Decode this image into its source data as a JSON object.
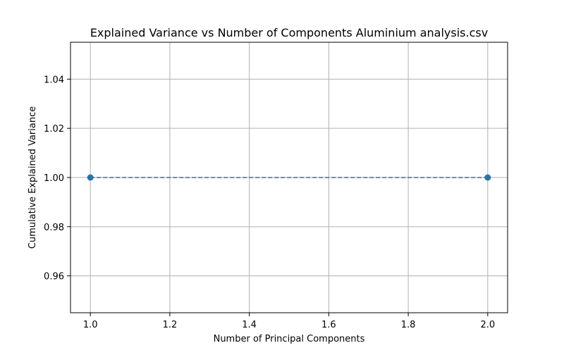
{
  "chart_data": {
    "type": "line",
    "title": "Explained Variance vs Number of Components Aluminium analysis.csv",
    "xlabel": "Number of Principal Components",
    "ylabel": "Cumulative Explained Variance",
    "x": [
      1,
      2
    ],
    "series": [
      {
        "values": [
          1.0,
          1.0
        ],
        "color": "#1f77b4",
        "linestyle": "dashed",
        "marker": "circle"
      }
    ],
    "xlim": [
      0.95,
      2.05
    ],
    "ylim": [
      0.945,
      1.055
    ],
    "xticks": [
      1.0,
      1.2,
      1.4,
      1.6,
      1.8,
      2.0
    ],
    "xtick_labels": [
      "1.0",
      "1.2",
      "1.4",
      "1.6",
      "1.8",
      "2.0"
    ],
    "yticks": [
      0.96,
      0.98,
      1.0,
      1.02,
      1.04
    ],
    "ytick_labels": [
      "0.96",
      "0.98",
      "1.00",
      "1.02",
      "1.04"
    ],
    "grid": true,
    "legend": "none"
  }
}
